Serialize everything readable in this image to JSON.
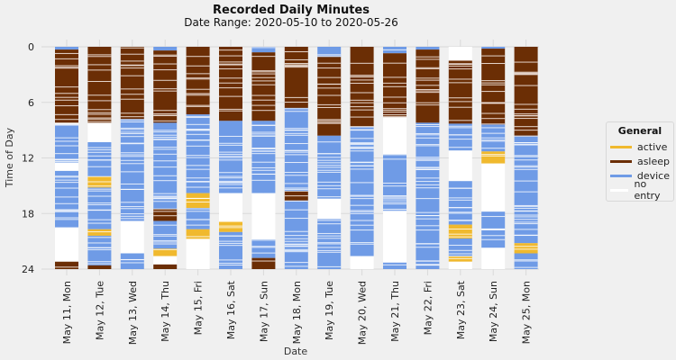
{
  "title": "Recorded Daily Minutes",
  "subtitle": "Date Range: 2020-05-10 to 2020-05-26",
  "chart_data": {
    "type": "bar",
    "orientation": "vertical-stacked-timeline",
    "title": "Recorded Daily Minutes",
    "subtitle": "Date Range: 2020-05-10 to 2020-05-26",
    "xlabel": "Date",
    "ylabel": "Time of Day",
    "ylim": [
      0,
      24
    ],
    "y_inverted": true,
    "yticks": [
      0,
      6,
      12,
      18,
      24
    ],
    "grid": true,
    "legend_position": "right",
    "categories": [
      "May 11, Mon",
      "May 12, Tue",
      "May 13, Wed",
      "May 14, Thu",
      "May 15, Fri",
      "May 16, Sat",
      "May 17, Sun",
      "May 18, Mon",
      "May 19, Tue",
      "May 20, Wed",
      "May 21, Thu",
      "May 22, Fri",
      "May 23, Sat",
      "May 24, Sun",
      "May 25, Mon"
    ],
    "legend": {
      "title": "General",
      "entries": [
        {
          "key": "active",
          "label": "active",
          "color": "#f0b92e"
        },
        {
          "key": "asleep",
          "label": "asleep",
          "color": "#6b2e05"
        },
        {
          "key": "device",
          "label": "device",
          "color": "#6f9be6"
        },
        {
          "key": "no_entry",
          "label": "no entry",
          "color": "#ffffff"
        }
      ]
    },
    "days": [
      {
        "label": "May 11, Mon",
        "segments": [
          [
            "device",
            0,
            0.3
          ],
          [
            "asleep",
            0.3,
            8.2
          ],
          [
            "no_entry",
            8.2,
            8.4
          ],
          [
            "device",
            8.4,
            12.5
          ],
          [
            "no_entry",
            12.5,
            13.4
          ],
          [
            "device",
            13.4,
            19.5
          ],
          [
            "no_entry",
            19.5,
            23.2
          ],
          [
            "asleep",
            23.2,
            24
          ]
        ]
      },
      {
        "label": "May 12, Tue",
        "segments": [
          [
            "asleep",
            0,
            8.2
          ],
          [
            "no_entry",
            8.2,
            10.3
          ],
          [
            "device",
            10.3,
            14
          ],
          [
            "active",
            14,
            15.2
          ],
          [
            "device",
            15.2,
            19.7
          ],
          [
            "active",
            19.7,
            20.4
          ],
          [
            "device",
            20.4,
            23.6
          ],
          [
            "asleep",
            23.6,
            24
          ]
        ]
      },
      {
        "label": "May 13, Wed",
        "segments": [
          [
            "asleep",
            0,
            7.8
          ],
          [
            "device",
            7.8,
            18.8
          ],
          [
            "no_entry",
            18.8,
            22.3
          ],
          [
            "device",
            22.3,
            24
          ]
        ]
      },
      {
        "label": "May 14, Thu",
        "segments": [
          [
            "device",
            0,
            0.4
          ],
          [
            "asleep",
            0.4,
            8.2
          ],
          [
            "device",
            8.2,
            17.5
          ],
          [
            "asleep",
            17.5,
            18.8
          ],
          [
            "device",
            18.8,
            21.8
          ],
          [
            "active",
            21.8,
            22.6
          ],
          [
            "no_entry",
            22.6,
            23.5
          ],
          [
            "asleep",
            23.5,
            24
          ]
        ]
      },
      {
        "label": "May 15, Fri",
        "segments": [
          [
            "asleep",
            0,
            7.3
          ],
          [
            "device",
            7.3,
            15.8
          ],
          [
            "active",
            15.8,
            17.4
          ],
          [
            "device",
            17.4,
            19.7
          ],
          [
            "active",
            19.7,
            20.8
          ],
          [
            "no_entry",
            20.8,
            24
          ]
        ]
      },
      {
        "label": "May 16, Sat",
        "segments": [
          [
            "asleep",
            0,
            8
          ],
          [
            "device",
            8,
            15.8
          ],
          [
            "no_entry",
            15.8,
            18.9
          ],
          [
            "active",
            18.9,
            20
          ],
          [
            "device",
            20,
            24
          ]
        ]
      },
      {
        "label": "May 17, Sun",
        "segments": [
          [
            "device",
            0,
            0.6
          ],
          [
            "asleep",
            0.6,
            8
          ],
          [
            "device",
            8,
            15.8
          ],
          [
            "no_entry",
            15.8,
            20.8
          ],
          [
            "device",
            20.8,
            22.8
          ],
          [
            "asleep",
            22.8,
            24
          ]
        ]
      },
      {
        "label": "May 18, Mon",
        "segments": [
          [
            "asleep",
            0,
            6.6
          ],
          [
            "device",
            6.6,
            15.6
          ],
          [
            "asleep",
            15.6,
            16.6
          ],
          [
            "device",
            16.6,
            24
          ]
        ]
      },
      {
        "label": "May 19, Tue",
        "segments": [
          [
            "device",
            0,
            1.1
          ],
          [
            "asleep",
            1.1,
            9.6
          ],
          [
            "device",
            9.6,
            16.4
          ],
          [
            "no_entry",
            16.4,
            18.6
          ],
          [
            "device",
            18.6,
            24
          ]
        ]
      },
      {
        "label": "May 20, Wed",
        "segments": [
          [
            "asleep",
            0,
            8.6
          ],
          [
            "device",
            8.6,
            22.6
          ],
          [
            "no_entry",
            22.6,
            24
          ]
        ]
      },
      {
        "label": "May 21, Thu",
        "segments": [
          [
            "device",
            0,
            0.7
          ],
          [
            "asleep",
            0.7,
            7.6
          ],
          [
            "no_entry",
            7.6,
            11.6
          ],
          [
            "device",
            11.6,
            17.8
          ],
          [
            "no_entry",
            17.8,
            23.3
          ],
          [
            "device",
            23.3,
            24
          ]
        ]
      },
      {
        "label": "May 22, Fri",
        "segments": [
          [
            "device",
            0,
            0.3
          ],
          [
            "asleep",
            0.3,
            8.2
          ],
          [
            "device",
            8.2,
            24
          ]
        ]
      },
      {
        "label": "May 23, Sat",
        "segments": [
          [
            "no_entry",
            0,
            1.5
          ],
          [
            "asleep",
            1.5,
            8.3
          ],
          [
            "device",
            8.3,
            11.2
          ],
          [
            "no_entry",
            11.2,
            14.5
          ],
          [
            "device",
            14.5,
            19.2
          ],
          [
            "active",
            19.2,
            20.7
          ],
          [
            "device",
            20.7,
            22.6
          ],
          [
            "active",
            22.6,
            23.2
          ],
          [
            "no_entry",
            23.2,
            24
          ]
        ]
      },
      {
        "label": "May 24, Sun",
        "segments": [
          [
            "device",
            0,
            0.2
          ],
          [
            "asleep",
            0.2,
            8.4
          ],
          [
            "device",
            8.4,
            11.3
          ],
          [
            "active",
            11.3,
            12.6
          ],
          [
            "no_entry",
            12.6,
            17.8
          ],
          [
            "device",
            17.8,
            21.7
          ],
          [
            "no_entry",
            21.7,
            24
          ]
        ]
      },
      {
        "label": "May 25, Mon",
        "segments": [
          [
            "asleep",
            0,
            9.6
          ],
          [
            "device",
            9.6,
            21.2
          ],
          [
            "active",
            21.2,
            22.3
          ],
          [
            "device",
            22.3,
            24
          ]
        ]
      }
    ]
  }
}
